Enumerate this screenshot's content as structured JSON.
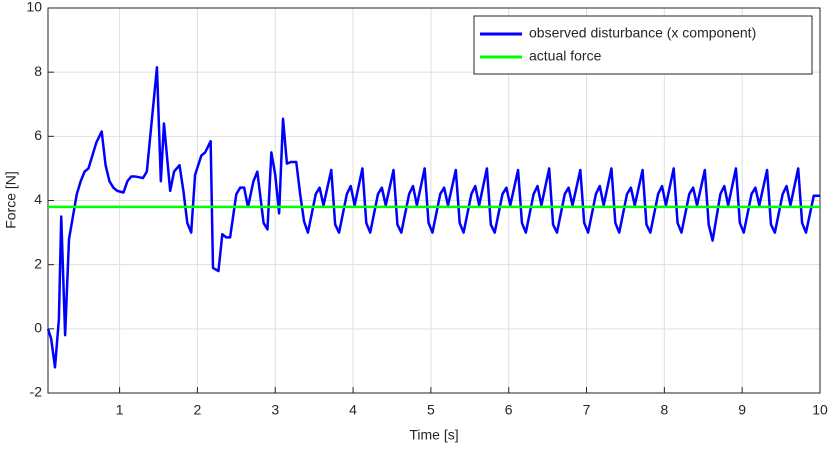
{
  "chart_data": {
    "type": "line",
    "xlabel": "Time [s]",
    "ylabel": "Force [N]",
    "xlim": [
      0.08,
      10
    ],
    "ylim": [
      -2,
      10
    ],
    "xticks": [
      1,
      2,
      3,
      4,
      5,
      6,
      7,
      8,
      9,
      10
    ],
    "yticks": [
      -2,
      0,
      2,
      4,
      6,
      8,
      10
    ],
    "grid": true,
    "legend": "top-right",
    "series": [
      {
        "name": "observed disturbance (x component)",
        "color": "#0000ff",
        "x": [
          0.08,
          0.12,
          0.17,
          0.22,
          0.25,
          0.3,
          0.35,
          0.4,
          0.45,
          0.5,
          0.55,
          0.6,
          0.65,
          0.7,
          0.77,
          0.82,
          0.87,
          0.92,
          0.97,
          1.05,
          1.1,
          1.15,
          1.2,
          1.3,
          1.35,
          1.48,
          1.53,
          1.57,
          1.65,
          1.7,
          1.77,
          1.82,
          1.87,
          1.92,
          1.97,
          2.05,
          2.1,
          2.17,
          2.2,
          2.27,
          2.32,
          2.37,
          2.42,
          2.5,
          2.55,
          2.6,
          2.65,
          2.72,
          2.77,
          2.85,
          2.9,
          2.95,
          3.0,
          3.05,
          3.1,
          3.15,
          3.2,
          3.27,
          3.32,
          3.37,
          3.42,
          3.52,
          3.57,
          3.62,
          3.72,
          3.77,
          3.82,
          3.92,
          3.97,
          4.02,
          4.12,
          4.17,
          4.22,
          4.32,
          4.37,
          4.42,
          4.52,
          4.57,
          4.62,
          4.72,
          4.77,
          4.82,
          4.92,
          4.97,
          5.02,
          5.12,
          5.17,
          5.22,
          5.32,
          5.37,
          5.42,
          5.52,
          5.57,
          5.62,
          5.72,
          5.77,
          5.82,
          5.92,
          5.97,
          6.02,
          6.12,
          6.17,
          6.22,
          6.32,
          6.37,
          6.42,
          6.52,
          6.57,
          6.62,
          6.72,
          6.77,
          6.82,
          6.92,
          6.97,
          7.02,
          7.12,
          7.17,
          7.22,
          7.32,
          7.37,
          7.42,
          7.52,
          7.57,
          7.62,
          7.72,
          7.77,
          7.82,
          7.92,
          7.97,
          8.02,
          8.12,
          8.17,
          8.22,
          8.32,
          8.37,
          8.42,
          8.52,
          8.57,
          8.62,
          8.72,
          8.77,
          8.82,
          8.92,
          8.97,
          9.02,
          9.12,
          9.17,
          9.22,
          9.32,
          9.37,
          9.42,
          9.52,
          9.57,
          9.62,
          9.72,
          9.77,
          9.82,
          9.92,
          10.0
        ],
        "values": [
          0,
          -0.3,
          -1.2,
          0.3,
          3.5,
          -0.2,
          2.8,
          3.5,
          4.2,
          4.6,
          4.9,
          5.0,
          5.4,
          5.8,
          6.15,
          5.1,
          4.6,
          4.4,
          4.3,
          4.25,
          4.6,
          4.75,
          4.75,
          4.7,
          4.9,
          8.15,
          4.6,
          6.4,
          4.3,
          4.9,
          5.1,
          4.3,
          3.3,
          3.0,
          4.8,
          5.4,
          5.5,
          5.85,
          1.9,
          1.8,
          2.95,
          2.85,
          2.85,
          4.2,
          4.4,
          4.4,
          3.8,
          4.6,
          4.9,
          3.3,
          3.1,
          5.5,
          4.8,
          3.6,
          6.55,
          5.15,
          5.2,
          5.2,
          4.2,
          3.35,
          3.0,
          4.2,
          4.4,
          3.85,
          4.95,
          3.25,
          3.0,
          4.2,
          4.45,
          3.85,
          5.0,
          3.3,
          3.0,
          4.2,
          4.4,
          3.85,
          4.95,
          3.25,
          3.0,
          4.2,
          4.45,
          3.85,
          5.0,
          3.3,
          3.0,
          4.2,
          4.4,
          3.85,
          4.95,
          3.3,
          3.0,
          4.2,
          4.45,
          3.85,
          5.0,
          3.25,
          3.0,
          4.2,
          4.4,
          3.85,
          4.95,
          3.3,
          3.0,
          4.2,
          4.45,
          3.85,
          5.0,
          3.25,
          3.0,
          4.2,
          4.4,
          3.85,
          4.95,
          3.3,
          3.0,
          4.2,
          4.45,
          3.85,
          5.0,
          3.3,
          3.0,
          4.2,
          4.4,
          3.85,
          4.95,
          3.25,
          3.0,
          4.2,
          4.45,
          3.85,
          5.0,
          3.3,
          3.0,
          4.2,
          4.4,
          3.85,
          4.95,
          3.25,
          2.75,
          4.2,
          4.45,
          3.85,
          5.0,
          3.3,
          3.0,
          4.2,
          4.4,
          3.85,
          4.95,
          3.25,
          3.0,
          4.2,
          4.45,
          3.85,
          5.0,
          3.3,
          3.0,
          4.15,
          4.15
        ]
      },
      {
        "name": "actual force",
        "color": "#00ff00",
        "x": [
          0.08,
          10
        ],
        "values": [
          3.8,
          3.8
        ]
      }
    ]
  }
}
